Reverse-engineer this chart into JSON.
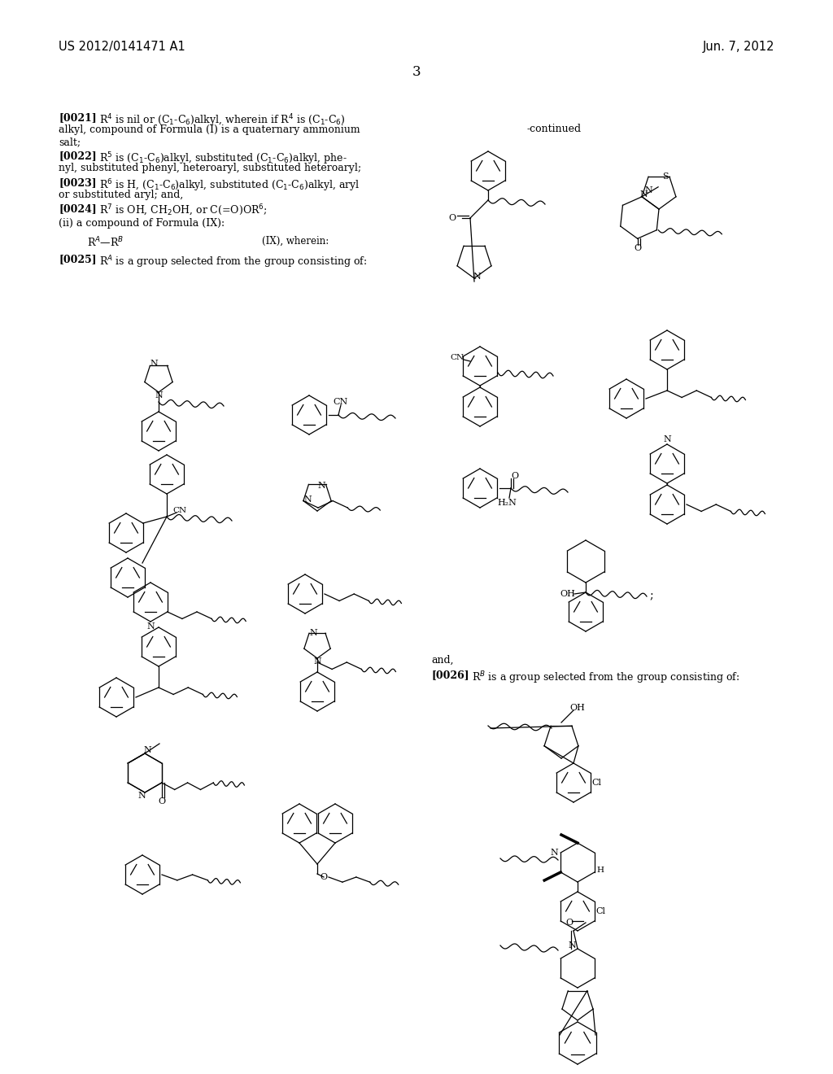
{
  "page_header_left": "US 2012/0141471 A1",
  "page_header_right": "Jun. 7, 2012",
  "page_number": "3",
  "continued_label": "-continued",
  "background_color": "#ffffff",
  "text_color": "#000000",
  "font_size_header": 10.5,
  "font_size_body": 9.0,
  "font_size_page_num": 12
}
